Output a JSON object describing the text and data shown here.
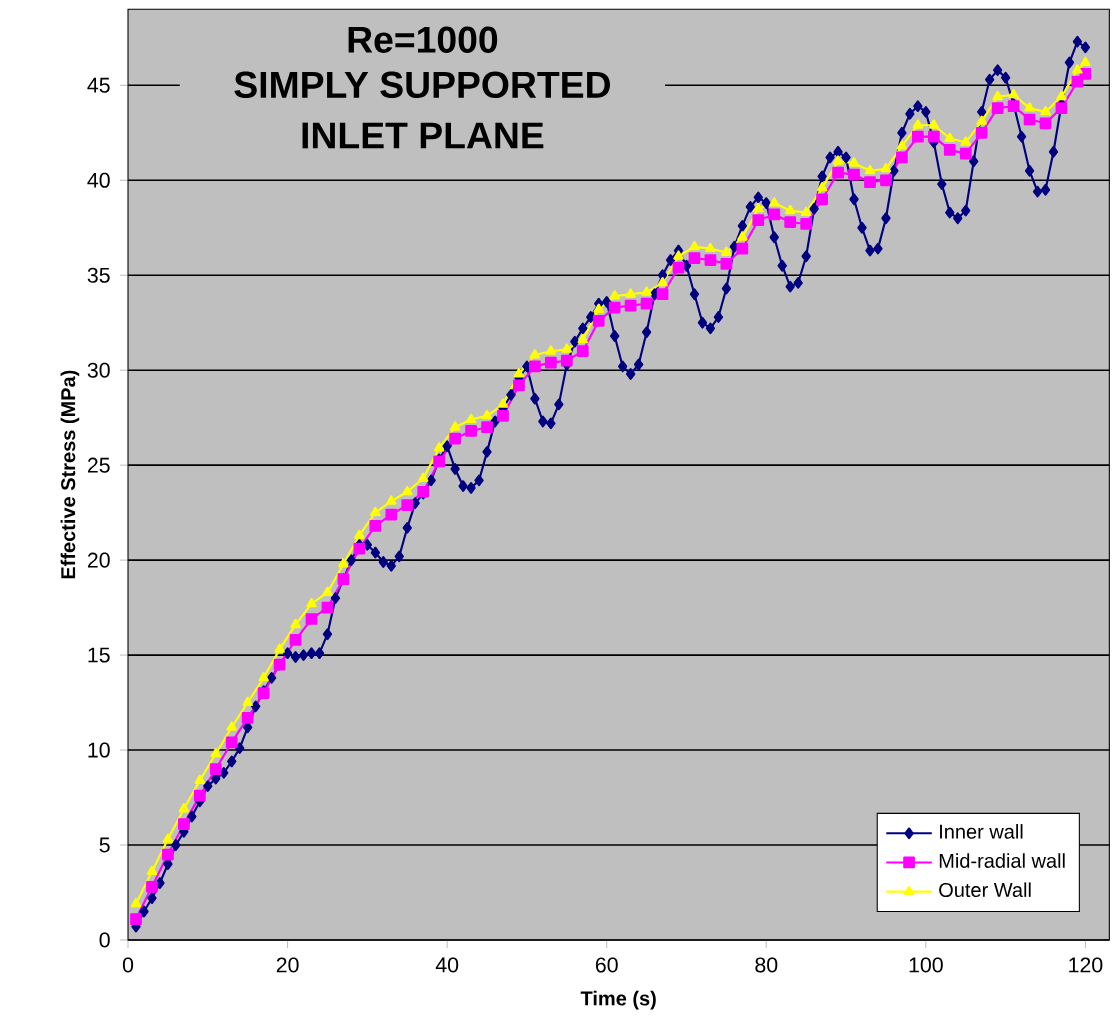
{
  "chart_data": {
    "type": "line",
    "title": "Re=1000",
    "subtitle": "SIMPLY SUPPORTED INLET PLANE",
    "xlabel": "Time (s)",
    "ylabel": "Effective Stress (MPa)",
    "xlim": [
      0,
      123
    ],
    "ylim": [
      0,
      49
    ],
    "xticks": [
      0,
      20,
      40,
      60,
      80,
      100,
      120
    ],
    "yticks": [
      0,
      5,
      10,
      15,
      20,
      25,
      30,
      35,
      40,
      45
    ],
    "grid": "y",
    "legend": "bottom right",
    "line_style": "solid",
    "series": [
      {
        "name": "Inner wall",
        "color": "#000080",
        "marker": "diamond",
        "x": [
          1,
          2,
          3,
          4,
          5,
          6,
          7,
          8,
          9,
          10,
          11,
          12,
          13,
          14,
          15,
          16,
          17,
          18,
          19,
          20,
          21,
          22,
          23,
          24,
          25,
          26,
          27,
          28,
          29,
          30,
          31,
          32,
          33,
          34,
          35,
          36,
          37,
          38,
          39,
          40,
          41,
          42,
          43,
          44,
          45,
          46,
          47,
          48,
          49,
          50,
          51,
          52,
          53,
          54,
          55,
          56,
          57,
          58,
          59,
          60,
          61,
          62,
          63,
          64,
          65,
          66,
          67,
          68,
          69,
          70,
          71,
          72,
          73,
          74,
          75,
          76,
          77,
          78,
          79,
          80,
          81,
          82,
          83,
          84,
          85,
          86,
          87,
          88,
          89,
          90,
          91,
          92,
          93,
          94,
          95,
          96,
          97,
          98,
          99,
          100,
          101,
          102,
          103,
          104,
          105,
          106,
          107,
          108,
          109,
          110,
          111,
          112,
          113,
          114,
          115,
          116,
          117,
          118,
          119,
          120
        ],
        "values": [
          0.7,
          1.5,
          2.2,
          3.0,
          4.0,
          5.0,
          5.7,
          6.5,
          7.3,
          8.1,
          8.5,
          8.8,
          9.4,
          10.1,
          11.2,
          12.3,
          13.1,
          13.8,
          14.5,
          15.1,
          14.9,
          15.0,
          15.1,
          15.1,
          16.1,
          18.0,
          19.0,
          20.0,
          20.8,
          20.8,
          20.4,
          19.9,
          19.7,
          20.2,
          21.7,
          23.0,
          23.5,
          24.2,
          25.3,
          26.0,
          24.8,
          23.9,
          23.8,
          24.2,
          25.7,
          27.3,
          28.0,
          28.7,
          29.6,
          30.2,
          28.5,
          27.3,
          27.2,
          28.2,
          30.3,
          31.5,
          32.2,
          32.8,
          33.5,
          33.6,
          31.8,
          30.2,
          29.8,
          30.3,
          32.0,
          34.0,
          35.0,
          35.8,
          36.3,
          35.5,
          34.0,
          32.5,
          32.2,
          32.8,
          34.3,
          36.5,
          37.6,
          38.6,
          39.1,
          38.8,
          37.0,
          35.5,
          34.4,
          34.6,
          36.0,
          38.5,
          40.2,
          41.2,
          41.5,
          41.2,
          39.0,
          37.5,
          36.3,
          36.4,
          38.0,
          40.5,
          42.5,
          43.5,
          43.9,
          43.6,
          42.0,
          39.8,
          38.3,
          38.0,
          38.4,
          41.0,
          43.6,
          45.3,
          45.8,
          45.4,
          44.0,
          42.3,
          40.5,
          39.4,
          39.5,
          41.5,
          44.0,
          46.2,
          47.3,
          47.0
        ]
      },
      {
        "name": "Mid-radial wall",
        "color": "#ff00ff",
        "marker": "square",
        "x": [
          1,
          3,
          5,
          7,
          9,
          11,
          13,
          15,
          17,
          19,
          21,
          23,
          25,
          27,
          29,
          31,
          33,
          35,
          37,
          39,
          41,
          43,
          45,
          47,
          49,
          51,
          53,
          55,
          57,
          59,
          61,
          63,
          65,
          67,
          69,
          71,
          73,
          75,
          77,
          79,
          81,
          83,
          85,
          87,
          89,
          91,
          93,
          95,
          97,
          99,
          101,
          103,
          105,
          107,
          109,
          111,
          113,
          115,
          117,
          119,
          120
        ],
        "values": [
          1.1,
          2.8,
          4.5,
          6.1,
          7.6,
          9.0,
          10.4,
          11.7,
          13.0,
          14.5,
          15.8,
          16.9,
          17.5,
          19.0,
          20.6,
          21.8,
          22.4,
          22.9,
          23.6,
          25.2,
          26.4,
          26.8,
          27.0,
          27.6,
          29.2,
          30.2,
          30.4,
          30.5,
          31.0,
          32.6,
          33.3,
          33.4,
          33.5,
          34.0,
          35.4,
          35.9,
          35.8,
          35.6,
          36.4,
          37.9,
          38.2,
          37.8,
          37.7,
          39.0,
          40.4,
          40.3,
          39.9,
          40.0,
          41.2,
          42.3,
          42.3,
          41.6,
          41.4,
          42.5,
          43.8,
          43.9,
          43.2,
          43.0,
          43.8,
          45.2,
          45.6
        ]
      },
      {
        "name": "Outer Wall",
        "color": "#ffff00",
        "marker": "triangle",
        "x": [
          1,
          3,
          5,
          7,
          9,
          11,
          13,
          15,
          17,
          19,
          21,
          23,
          25,
          27,
          29,
          31,
          33,
          35,
          37,
          39,
          41,
          43,
          45,
          47,
          49,
          51,
          53,
          55,
          57,
          59,
          61,
          63,
          65,
          67,
          69,
          71,
          73,
          75,
          77,
          79,
          81,
          83,
          85,
          87,
          89,
          91,
          93,
          95,
          97,
          99,
          101,
          103,
          105,
          107,
          109,
          111,
          113,
          115,
          117,
          119,
          120
        ],
        "values": [
          1.9,
          3.6,
          5.3,
          6.9,
          8.4,
          9.8,
          11.2,
          12.5,
          13.8,
          15.3,
          16.6,
          17.7,
          18.3,
          19.8,
          21.3,
          22.5,
          23.1,
          23.6,
          24.3,
          25.9,
          27.0,
          27.4,
          27.6,
          28.2,
          29.8,
          30.8,
          31.0,
          31.1,
          31.6,
          33.2,
          33.9,
          34.0,
          34.1,
          34.6,
          36.0,
          36.5,
          36.4,
          36.2,
          37.0,
          38.5,
          38.8,
          38.4,
          38.3,
          39.6,
          41.0,
          40.9,
          40.5,
          40.6,
          41.8,
          42.9,
          42.9,
          42.2,
          42.0,
          43.1,
          44.4,
          44.5,
          43.8,
          43.6,
          44.4,
          45.8,
          46.2
        ]
      }
    ]
  }
}
